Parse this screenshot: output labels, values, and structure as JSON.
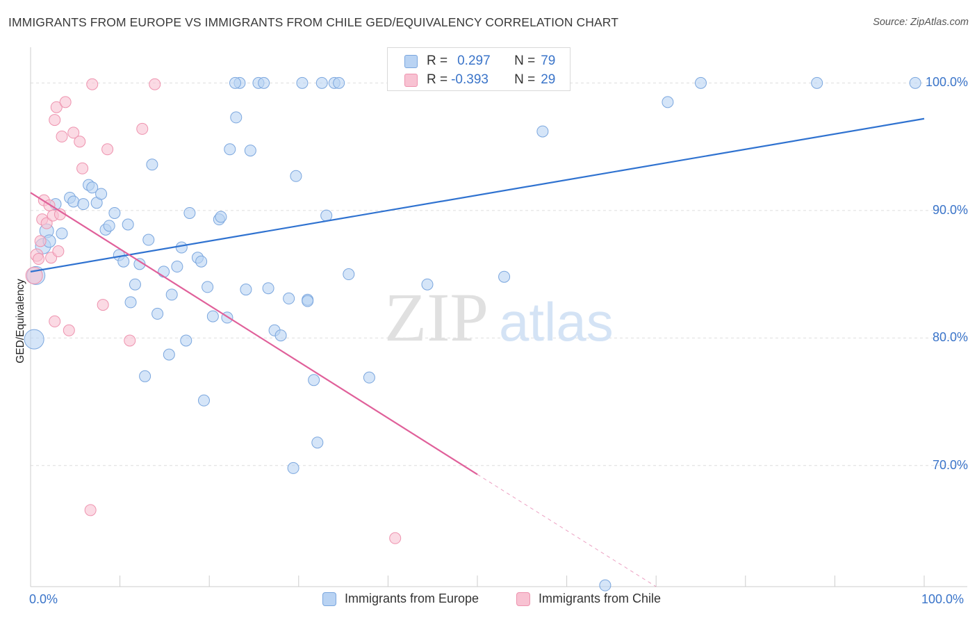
{
  "title": "IMMIGRANTS FROM EUROPE VS IMMIGRANTS FROM CHILE GED/EQUIVALENCY CORRELATION CHART",
  "source": "Source: ZipAtlas.com",
  "watermark": {
    "zip": "ZIP",
    "atlas": "atlas"
  },
  "legend_top": {
    "rows": [
      {
        "r_label": "R =",
        "r_value": "0.297",
        "n_label": "N =",
        "n_value": "79"
      },
      {
        "r_label": "R =",
        "r_value": "-0.393",
        "n_label": "N =",
        "n_value": "29"
      }
    ]
  },
  "colors": {
    "europe_fill": "#b9d3f3",
    "europe_stroke": "#7aa6de",
    "europe_line": "#2f72d0",
    "chile_fill": "#f8c2d2",
    "chile_stroke": "#ee92ae",
    "chile_line": "#e0609a",
    "axis_text": "#3a74c9",
    "grid": "#dddddd"
  },
  "chart_data": {
    "type": "scatter",
    "title": "IMMIGRANTS FROM EUROPE VS IMMIGRANTS FROM CHILE GED/EQUIVALENCY CORRELATION CHART",
    "xlabel": "",
    "ylabel": "GED/Equivalency",
    "xlim": [
      0,
      100
    ],
    "ylim": [
      60.5,
      102.8
    ],
    "x_tick_labels": [
      "0.0%",
      "100.0%"
    ],
    "y_ticks": [
      70,
      80,
      90,
      100
    ],
    "y_tick_labels": [
      "70.0%",
      "80.0%",
      "90.0%",
      "100.0%"
    ],
    "grid": true,
    "legend_position": "bottom",
    "series": [
      {
        "name": "Immigrants from Europe",
        "r": 0.297,
        "n": 79,
        "trend": {
          "x": [
            0,
            100
          ],
          "y": [
            85.2,
            97.2
          ]
        },
        "points": [
          [
            0.6,
            84.9
          ],
          [
            0.4,
            79.9
          ],
          [
            1.4,
            87.2
          ],
          [
            1.8,
            88.4
          ],
          [
            2.1,
            87.6
          ],
          [
            3.5,
            88.2
          ],
          [
            2.8,
            90.5
          ],
          [
            4.4,
            91.0
          ],
          [
            4.8,
            90.7
          ],
          [
            5.9,
            90.5
          ],
          [
            6.5,
            92.0
          ],
          [
            6.9,
            91.8
          ],
          [
            7.4,
            90.6
          ],
          [
            7.9,
            91.3
          ],
          [
            8.4,
            88.5
          ],
          [
            8.8,
            88.8
          ],
          [
            9.4,
            89.8
          ],
          [
            9.9,
            86.5
          ],
          [
            10.4,
            86.0
          ],
          [
            10.9,
            88.9
          ],
          [
            11.2,
            82.8
          ],
          [
            11.7,
            84.2
          ],
          [
            12.2,
            85.8
          ],
          [
            12.8,
            77.0
          ],
          [
            13.2,
            87.7
          ],
          [
            13.6,
            93.6
          ],
          [
            14.2,
            81.9
          ],
          [
            14.9,
            85.2
          ],
          [
            15.5,
            78.7
          ],
          [
            15.8,
            83.4
          ],
          [
            16.4,
            85.6
          ],
          [
            16.9,
            87.1
          ],
          [
            17.4,
            79.8
          ],
          [
            17.8,
            89.8
          ],
          [
            18.7,
            86.3
          ],
          [
            19.1,
            86.0
          ],
          [
            19.4,
            75.1
          ],
          [
            19.8,
            84.0
          ],
          [
            20.4,
            81.7
          ],
          [
            21.1,
            89.3
          ],
          [
            21.3,
            89.5
          ],
          [
            22.0,
            81.6
          ],
          [
            22.3,
            94.8
          ],
          [
            23.0,
            97.3
          ],
          [
            23.4,
            100.0
          ],
          [
            24.1,
            83.8
          ],
          [
            24.6,
            94.7
          ],
          [
            25.5,
            100.0
          ],
          [
            26.1,
            100.0
          ],
          [
            26.6,
            83.9
          ],
          [
            27.3,
            80.6
          ],
          [
            28.0,
            80.2
          ],
          [
            28.9,
            83.1
          ],
          [
            29.4,
            69.8
          ],
          [
            29.7,
            92.7
          ],
          [
            30.4,
            100.0
          ],
          [
            31.0,
            83.0
          ],
          [
            31.0,
            82.9
          ],
          [
            31.7,
            76.7
          ],
          [
            32.1,
            71.8
          ],
          [
            32.6,
            100.0
          ],
          [
            33.1,
            89.6
          ],
          [
            34.0,
            100.0
          ],
          [
            34.5,
            100.0
          ],
          [
            35.6,
            85.0
          ],
          [
            37.9,
            76.9
          ],
          [
            40.7,
            100.0
          ],
          [
            44.4,
            84.2
          ],
          [
            47.5,
            100.0
          ],
          [
            51.3,
            100.0
          ],
          [
            53.0,
            84.8
          ],
          [
            56.8,
            100.0
          ],
          [
            57.3,
            96.2
          ],
          [
            64.3,
            60.6
          ],
          [
            71.3,
            98.5
          ],
          [
            75.0,
            100.0
          ],
          [
            88.0,
            100.0
          ],
          [
            99.0,
            100.0
          ],
          [
            22.9,
            100.0
          ]
        ]
      },
      {
        "name": "Immigrants from Chile",
        "r": -0.393,
        "n": 29,
        "trend": {
          "x": [
            0,
            50.0
          ],
          "y": [
            91.4,
            69.3
          ]
        },
        "trend_extension": {
          "x": [
            50.0,
            70.0
          ],
          "y": [
            69.3,
            60.5
          ]
        },
        "points": [
          [
            0.4,
            84.9
          ],
          [
            0.7,
            86.5
          ],
          [
            0.9,
            86.2
          ],
          [
            1.1,
            87.6
          ],
          [
            1.3,
            89.3
          ],
          [
            1.5,
            90.8
          ],
          [
            1.8,
            89.0
          ],
          [
            2.1,
            90.4
          ],
          [
            2.3,
            86.3
          ],
          [
            2.5,
            89.6
          ],
          [
            2.7,
            97.1
          ],
          [
            2.9,
            98.1
          ],
          [
            3.1,
            86.8
          ],
          [
            3.3,
            89.7
          ],
          [
            3.5,
            95.8
          ],
          [
            3.9,
            98.5
          ],
          [
            4.3,
            80.6
          ],
          [
            4.8,
            96.1
          ],
          [
            5.5,
            95.4
          ],
          [
            5.8,
            93.3
          ],
          [
            6.7,
            66.5
          ],
          [
            6.9,
            99.9
          ],
          [
            8.1,
            82.6
          ],
          [
            8.6,
            94.8
          ],
          [
            11.1,
            79.8
          ],
          [
            12.5,
            96.4
          ],
          [
            13.9,
            99.9
          ],
          [
            2.7,
            81.3
          ],
          [
            40.8,
            64.3
          ]
        ]
      }
    ]
  },
  "legend_bottom": {
    "items": [
      {
        "label": "Immigrants from Europe"
      },
      {
        "label": "Immigrants from Chile"
      }
    ]
  }
}
